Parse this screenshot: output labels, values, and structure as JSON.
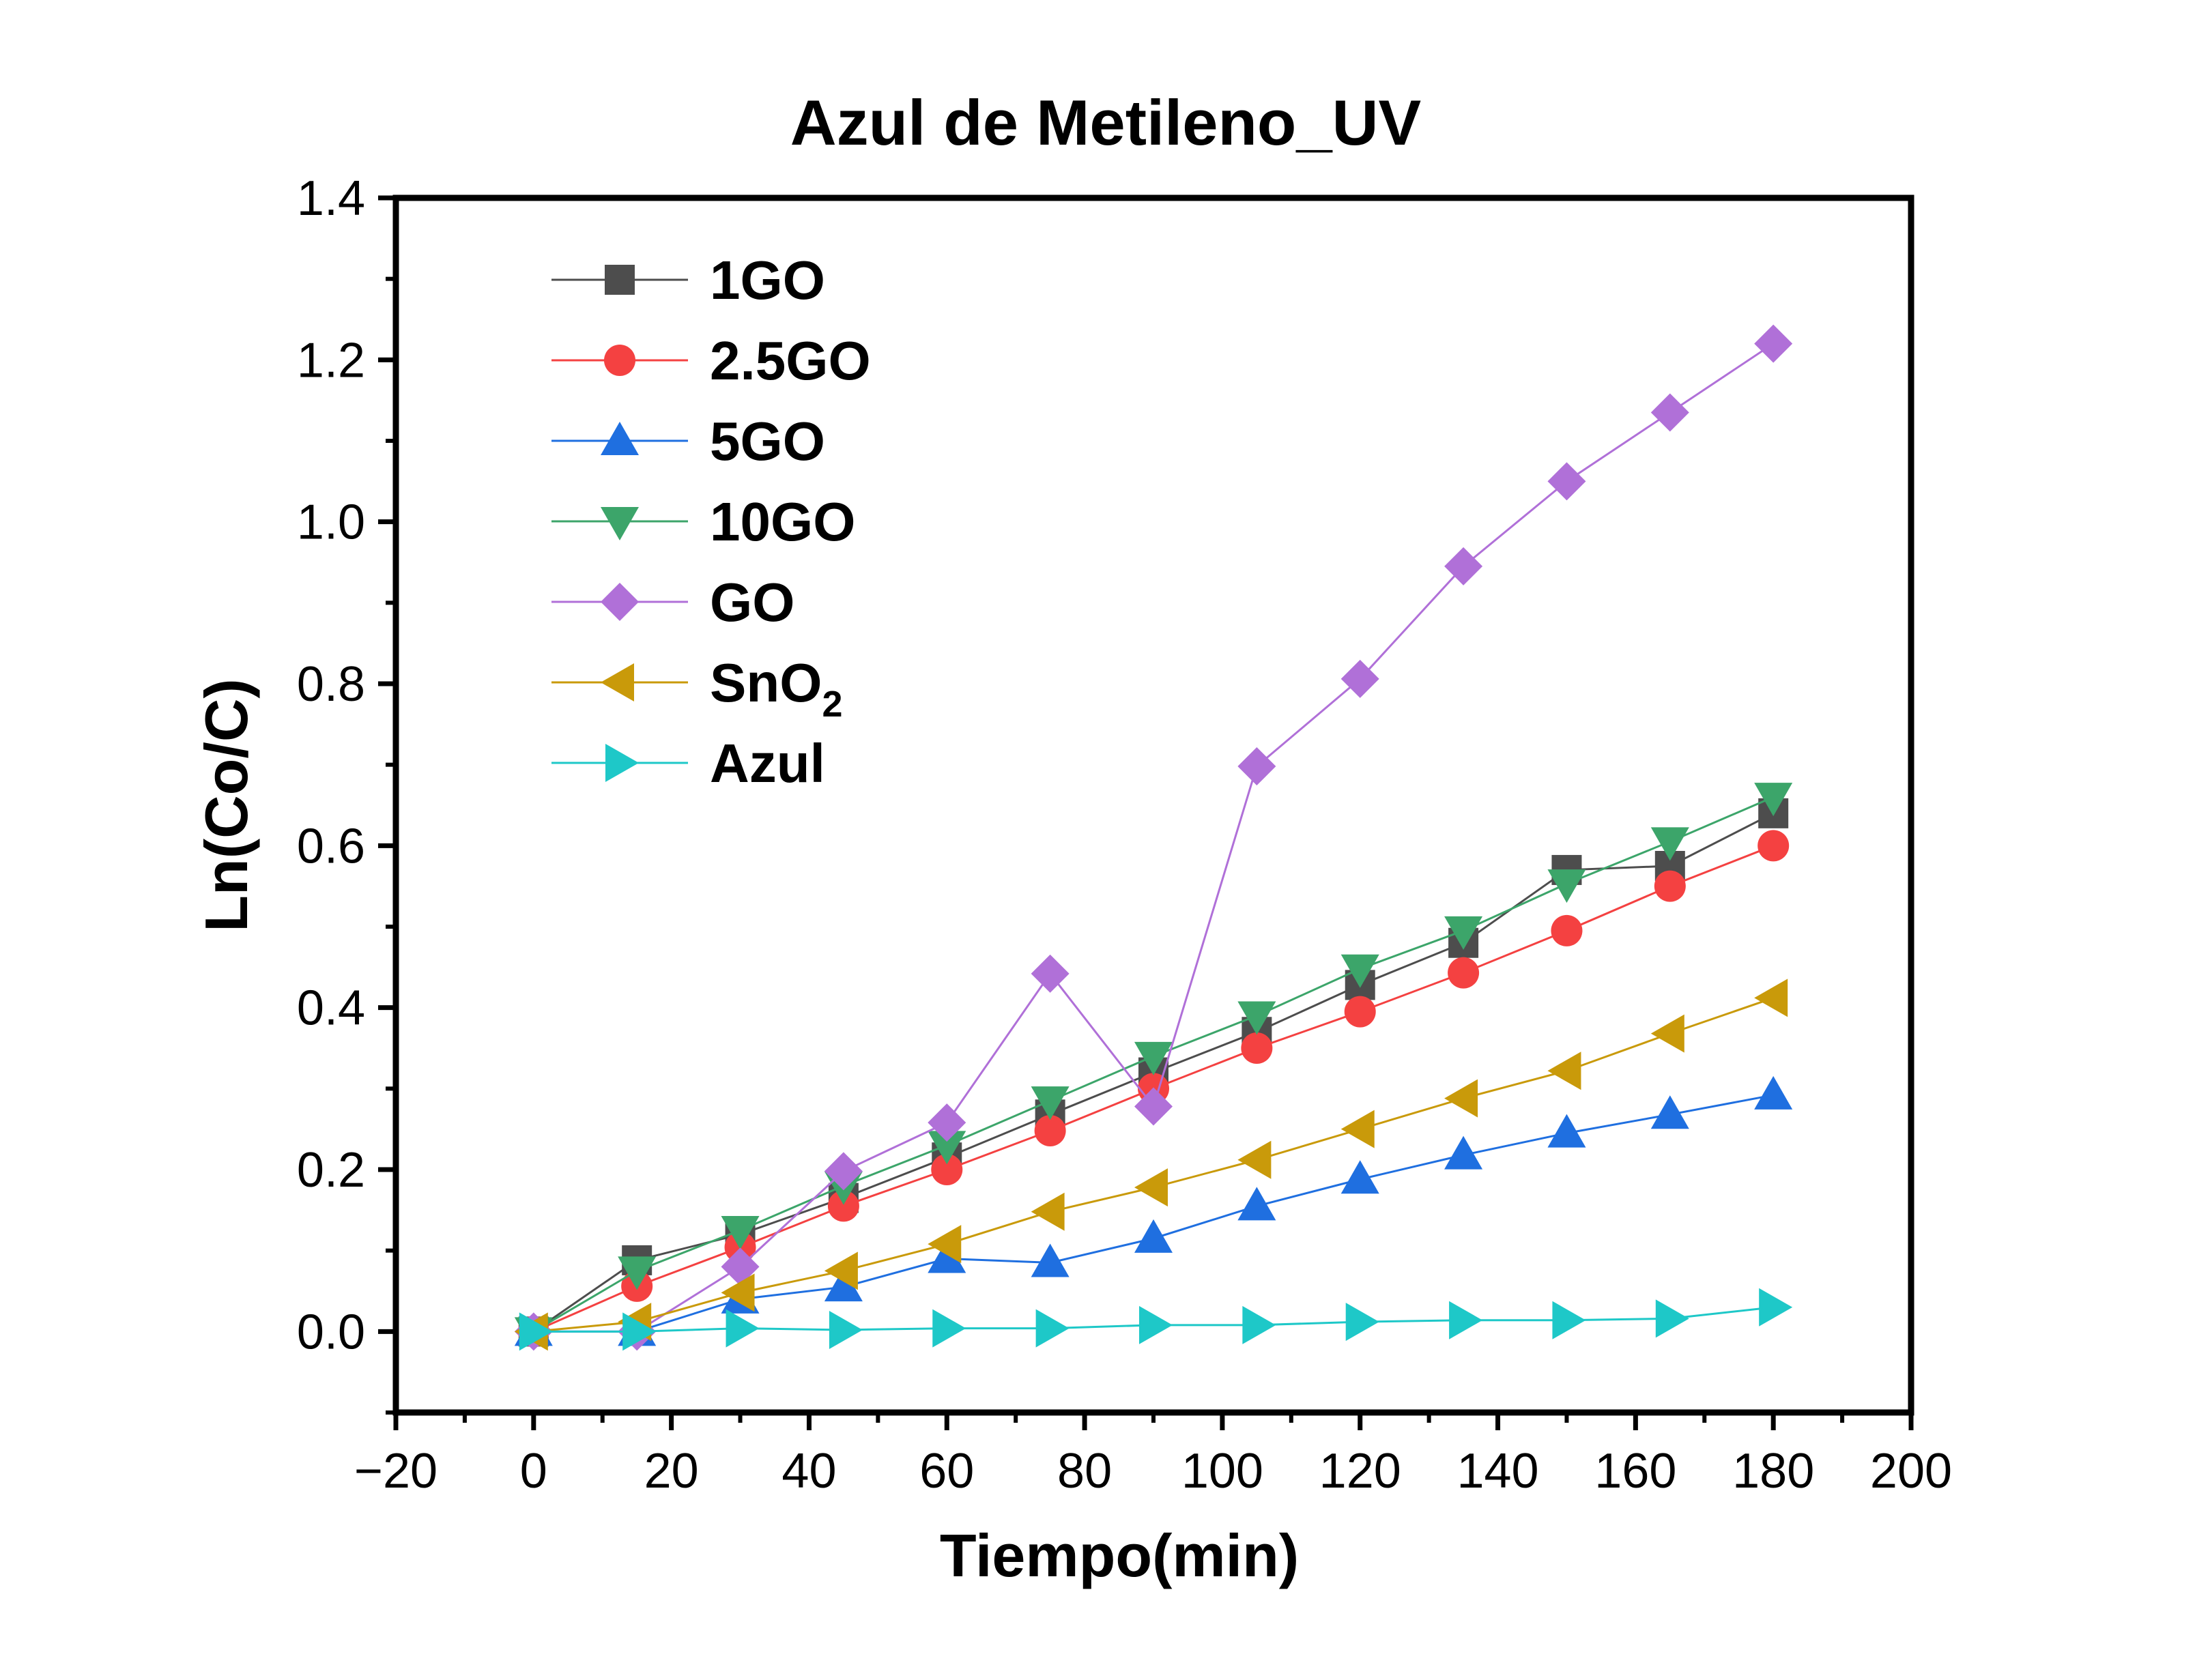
{
  "chart_data": {
    "type": "line",
    "title": "Azul de Metileno_UV",
    "xlabel": "Tiempo(min)",
    "ylabel": "Ln(Co/C)",
    "xlim": [
      -20,
      200
    ],
    "ylim": [
      -0.1,
      1.4
    ],
    "xticks": [
      -20,
      0,
      20,
      40,
      60,
      80,
      100,
      120,
      140,
      160,
      180,
      200
    ],
    "yticks": [
      0.0,
      0.2,
      0.4,
      0.6,
      0.8,
      1.0,
      1.2,
      1.4
    ],
    "xtick_labels": [
      "−20",
      "0",
      "20",
      "40",
      "60",
      "80",
      "100",
      "120",
      "140",
      "160",
      "180",
      "200"
    ],
    "ytick_labels": [
      "0.0",
      "0.2",
      "0.4",
      "0.6",
      "0.8",
      "1.0",
      "1.2",
      "1.4"
    ],
    "grid": false,
    "legend_position": "top-left",
    "x": [
      0,
      15,
      30,
      45,
      60,
      75,
      90,
      105,
      120,
      135,
      150,
      165,
      180
    ],
    "series": [
      {
        "name": "1GO",
        "name_main": "1GO",
        "name_sub": "",
        "marker": "square",
        "color": "#4d4d4d",
        "values": [
          0,
          0.088,
          0.12,
          0.165,
          0.215,
          0.268,
          0.32,
          0.37,
          0.428,
          0.48,
          0.57,
          0.575,
          0.64
        ]
      },
      {
        "name": "2.5GO",
        "name_main": "2.5GO",
        "name_sub": "",
        "marker": "circle",
        "color": "#f44141",
        "values": [
          0,
          0.056,
          0.104,
          0.155,
          0.2,
          0.248,
          0.3,
          0.35,
          0.395,
          0.443,
          0.495,
          0.55,
          0.6
        ]
      },
      {
        "name": "5GO",
        "name_main": "5GO",
        "name_sub": "",
        "marker": "triangle-up",
        "color": "#1f6fe0",
        "values": [
          0,
          0.0,
          0.04,
          0.055,
          0.09,
          0.085,
          0.115,
          0.155,
          0.188,
          0.218,
          0.245,
          0.268,
          0.292
        ]
      },
      {
        "name": "10GO",
        "name_main": "10GO",
        "name_sub": "",
        "marker": "triangle-down",
        "color": "#3ca56a",
        "values": [
          0,
          0.075,
          0.125,
          0.18,
          0.23,
          0.285,
          0.34,
          0.39,
          0.448,
          0.495,
          0.553,
          0.605,
          0.66
        ]
      },
      {
        "name": "GO",
        "name_main": "GO",
        "name_sub": "",
        "marker": "diamond",
        "color": "#b070d8",
        "values": [
          0,
          0.0,
          0.08,
          0.198,
          0.258,
          0.442,
          0.278,
          0.698,
          0.806,
          0.945,
          1.05,
          1.135,
          1.22
        ]
      },
      {
        "name": "SnO2",
        "name_main": "SnO",
        "name_sub": "2",
        "marker": "triangle-left",
        "color": "#c99a0a",
        "values": [
          0,
          0.012,
          0.048,
          0.075,
          0.108,
          0.148,
          0.178,
          0.212,
          0.25,
          0.288,
          0.322,
          0.368,
          0.412
        ]
      },
      {
        "name": "Azul",
        "name_main": "Azul",
        "name_sub": "",
        "marker": "triangle-right",
        "color": "#1ec8c8",
        "values": [
          0,
          0.0,
          0.004,
          0.002,
          0.004,
          0.004,
          0.008,
          0.008,
          0.012,
          0.014,
          0.014,
          0.016,
          0.03
        ]
      }
    ]
  }
}
